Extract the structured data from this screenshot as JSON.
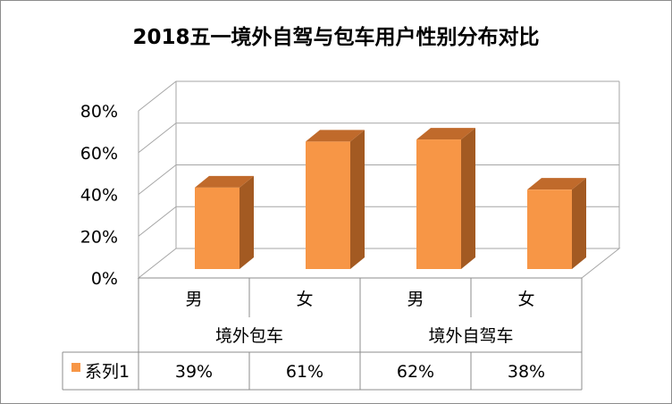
{
  "chart_data": {
    "type": "bar",
    "title": "2018五一境外自驾与包车用户性别分布对比",
    "categories": [
      {
        "group": "境外包车",
        "label": "男"
      },
      {
        "group": "境外包车",
        "label": "女"
      },
      {
        "group": "境外自驾车",
        "label": "男"
      },
      {
        "group": "境外自驾车",
        "label": "女"
      }
    ],
    "groups": [
      "境外包车",
      "境外自驾车"
    ],
    "series": [
      {
        "name": "系列1",
        "values": [
          39,
          61,
          62,
          38
        ],
        "labels": [
          "39%",
          "61%",
          "62%",
          "38%"
        ],
        "color": "#f79646"
      }
    ],
    "y_ticks": [
      "0%",
      "20%",
      "40%",
      "60%",
      "80%"
    ],
    "ylim": [
      0,
      80
    ],
    "grid": true,
    "three_d": true,
    "data_table": true
  }
}
